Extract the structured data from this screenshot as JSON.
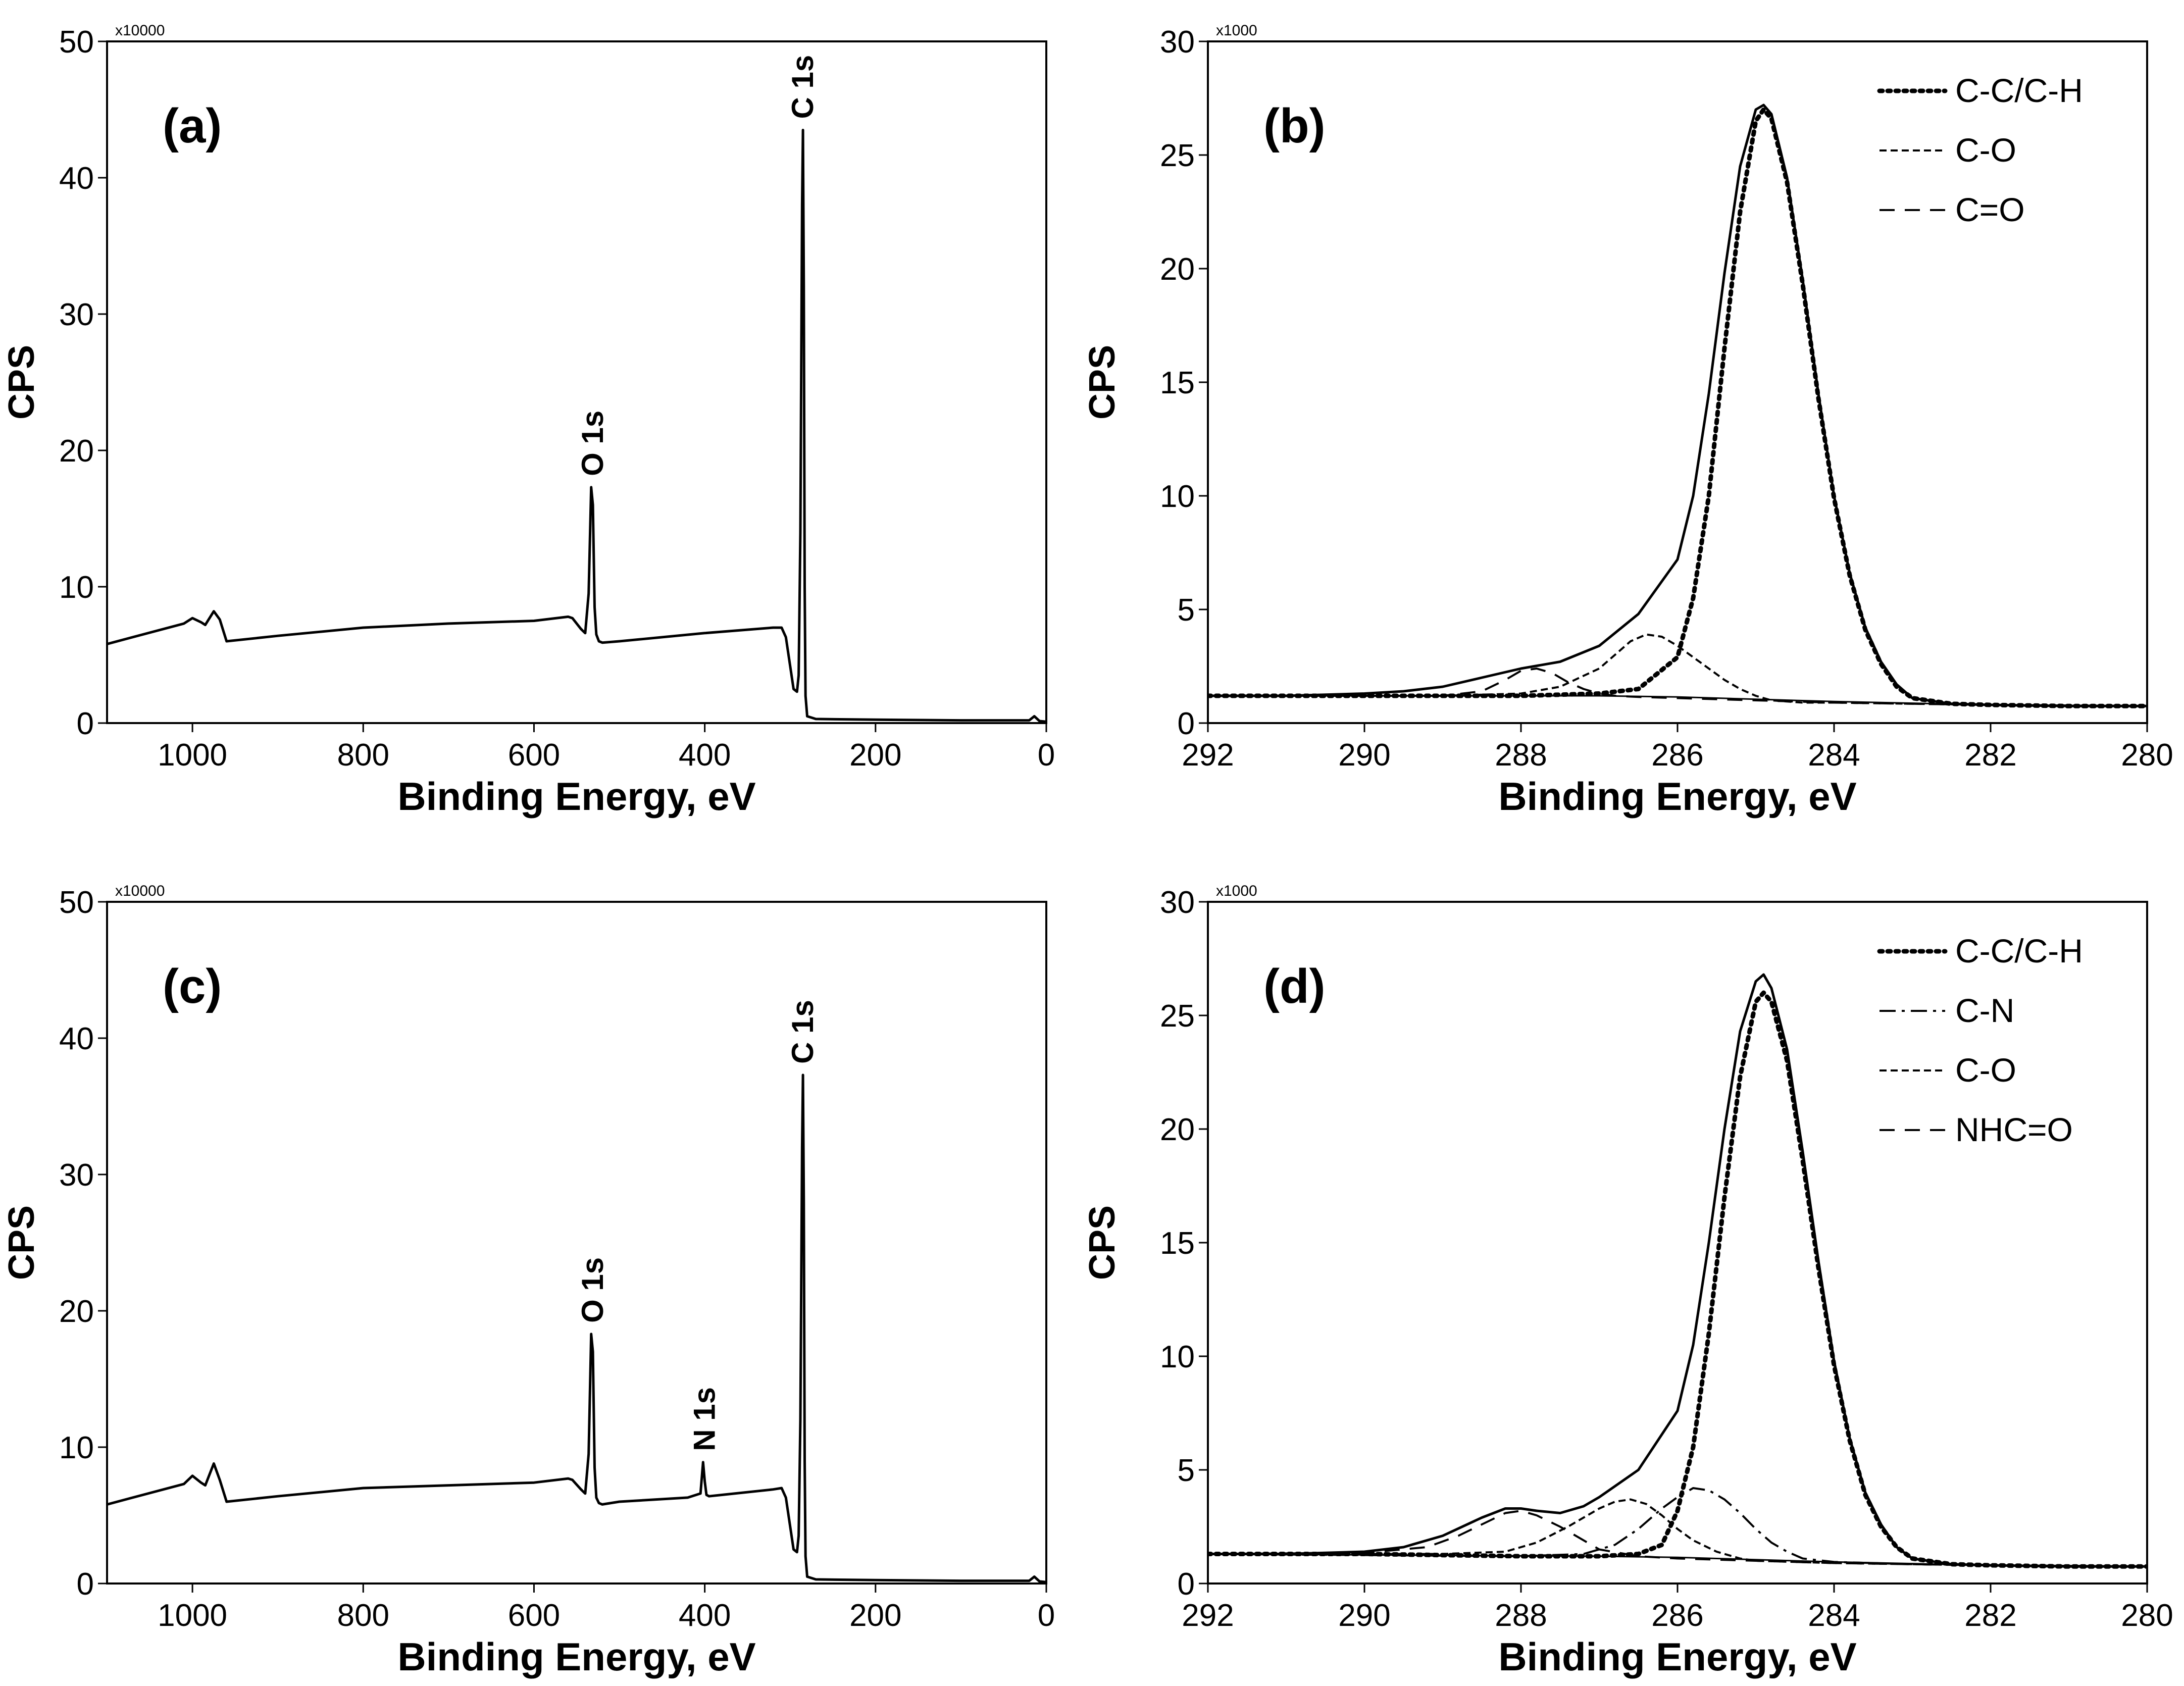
{
  "chart_data": [
    {
      "panel": "(a)",
      "type": "line",
      "title": "",
      "xlabel": "Binding Energy, eV",
      "ylabel": "CPS",
      "y_multiplier": "x10000",
      "xlim": [
        1100,
        0
      ],
      "ylim": [
        0,
        50
      ],
      "xticks": [
        1000,
        800,
        600,
        400,
        200,
        0
      ],
      "yticks": [
        0,
        10,
        20,
        30,
        40,
        50
      ],
      "series": [
        {
          "name": "survey",
          "style": "solid",
          "x": [
            1100,
            1010,
            1000,
            990,
            985,
            975,
            968,
            960,
            900,
            800,
            700,
            600,
            560,
            555,
            545,
            540,
            536,
            533,
            531,
            529,
            527,
            524,
            520,
            500,
            400,
            320,
            310,
            305,
            300,
            296,
            292,
            290,
            288,
            286,
            285,
            284,
            283,
            282,
            280,
            270,
            200,
            100,
            20,
            14,
            8,
            0
          ],
          "y": [
            5.8,
            7.3,
            7.7,
            7.4,
            7.2,
            8.2,
            7.6,
            6.0,
            6.4,
            7.0,
            7.3,
            7.5,
            7.8,
            7.7,
            6.9,
            6.6,
            9.5,
            17.3,
            16.0,
            8.5,
            6.5,
            6.0,
            5.9,
            6.0,
            6.6,
            7.0,
            7.0,
            6.3,
            4.2,
            2.5,
            2.3,
            3.5,
            14.0,
            38.0,
            43.5,
            32.0,
            10.0,
            2.0,
            0.5,
            0.3,
            0.25,
            0.2,
            0.2,
            0.5,
            0.15,
            0.1
          ]
        }
      ],
      "annotations": [
        {
          "text": "O 1s",
          "x": 531,
          "y": 17.3
        },
        {
          "text": "C 1s",
          "x": 285,
          "y": 43.5
        }
      ]
    },
    {
      "panel": "(b)",
      "type": "line",
      "title": "",
      "xlabel": "Binding Energy, eV",
      "ylabel": "CPS",
      "y_multiplier": "x1000",
      "xlim": [
        292,
        280
      ],
      "ylim": [
        0,
        30
      ],
      "xticks": [
        292,
        290,
        288,
        286,
        284,
        282,
        280
      ],
      "yticks": [
        0,
        5,
        10,
        15,
        20,
        25,
        30
      ],
      "legend": [
        {
          "label": "C-C/C-H",
          "style": "dotted"
        },
        {
          "label": "C-O",
          "style": "short-dash"
        },
        {
          "label": "C=O",
          "style": "dash"
        }
      ],
      "series": [
        {
          "name": "envelope",
          "style": "solid",
          "x": [
            292,
            291,
            290,
            289.5,
            289,
            288.5,
            288,
            287.5,
            287,
            286.5,
            286,
            285.8,
            285.6,
            285.4,
            285.2,
            285.0,
            284.9,
            284.8,
            284.6,
            284.4,
            284.2,
            284.0,
            283.8,
            283.6,
            283.4,
            283.2,
            283.0,
            282.5,
            282,
            281,
            280
          ],
          "y": [
            1.2,
            1.2,
            1.3,
            1.4,
            1.6,
            2.0,
            2.4,
            2.7,
            3.4,
            4.8,
            7.2,
            10.0,
            14.5,
            19.8,
            24.5,
            27.0,
            27.2,
            26.8,
            24.0,
            19.5,
            14.5,
            10.0,
            6.6,
            4.2,
            2.7,
            1.7,
            1.1,
            0.85,
            0.8,
            0.75,
            0.75
          ]
        },
        {
          "name": "C-C/C-H",
          "style": "dotted",
          "x": [
            292,
            290,
            288,
            287,
            286.5,
            286,
            285.8,
            285.6,
            285.4,
            285.2,
            285.0,
            284.9,
            284.8,
            284.6,
            284.4,
            284.2,
            284.0,
            283.8,
            283.6,
            283.4,
            283.2,
            283.0,
            282.5,
            282,
            281,
            280
          ],
          "y": [
            1.2,
            1.2,
            1.2,
            1.3,
            1.5,
            2.9,
            5.5,
            10.0,
            16.5,
            22.5,
            26.5,
            27.0,
            26.6,
            23.8,
            19.3,
            14.3,
            9.9,
            6.5,
            4.1,
            2.6,
            1.6,
            1.1,
            0.85,
            0.8,
            0.75,
            0.75
          ]
        },
        {
          "name": "C-O",
          "style": "short-dash",
          "x": [
            292,
            289,
            288,
            287.5,
            287,
            286.8,
            286.6,
            286.4,
            286.2,
            286.0,
            285.8,
            285.6,
            285.4,
            285.2,
            285.0,
            284.8,
            284.6,
            284.4,
            284,
            283,
            282,
            280
          ],
          "y": [
            1.2,
            1.2,
            1.3,
            1.6,
            2.4,
            3.0,
            3.6,
            3.9,
            3.8,
            3.4,
            2.9,
            2.4,
            1.9,
            1.5,
            1.2,
            1.0,
            0.95,
            0.9,
            0.9,
            0.85,
            0.8,
            0.75
          ]
        },
        {
          "name": "C=O",
          "style": "dash",
          "x": [
            292,
            289,
            288.5,
            288.2,
            288.0,
            287.8,
            287.6,
            287.4,
            287.2,
            287.0,
            286.8,
            286.5,
            286,
            285,
            284,
            283,
            282,
            280
          ],
          "y": [
            1.2,
            1.2,
            1.4,
            1.9,
            2.3,
            2.4,
            2.2,
            1.8,
            1.5,
            1.3,
            1.2,
            1.15,
            1.1,
            1.0,
            0.9,
            0.85,
            0.8,
            0.75
          ]
        },
        {
          "name": "background",
          "style": "solid-thin",
          "x": [
            292,
            287,
            286,
            284,
            282,
            280
          ],
          "y": [
            1.2,
            1.2,
            1.15,
            0.95,
            0.8,
            0.75
          ]
        }
      ]
    },
    {
      "panel": "(c)",
      "type": "line",
      "title": "",
      "xlabel": "Binding Energy, eV",
      "ylabel": "CPS",
      "y_multiplier": "x10000",
      "xlim": [
        1100,
        0
      ],
      "ylim": [
        0,
        50
      ],
      "xticks": [
        1000,
        800,
        600,
        400,
        200,
        0
      ],
      "yticks": [
        0,
        10,
        20,
        30,
        40,
        50
      ],
      "series": [
        {
          "name": "survey",
          "style": "solid",
          "x": [
            1100,
            1010,
            1000,
            990,
            985,
            975,
            968,
            960,
            900,
            800,
            700,
            600,
            560,
            555,
            545,
            540,
            536,
            533,
            531,
            529,
            527,
            524,
            520,
            500,
            420,
            405,
            402,
            400,
            398,
            395,
            380,
            320,
            310,
            305,
            300,
            296,
            292,
            290,
            288,
            286,
            285,
            284,
            283,
            282,
            280,
            270,
            200,
            100,
            20,
            14,
            8,
            0
          ],
          "y": [
            5.8,
            7.3,
            7.9,
            7.4,
            7.2,
            8.8,
            7.6,
            6.0,
            6.4,
            7.0,
            7.2,
            7.4,
            7.7,
            7.6,
            6.9,
            6.6,
            9.5,
            18.3,
            17.0,
            8.5,
            6.3,
            5.9,
            5.8,
            6.0,
            6.3,
            6.6,
            8.9,
            7.5,
            6.5,
            6.4,
            6.5,
            6.9,
            7.0,
            6.3,
            4.2,
            2.5,
            2.3,
            3.5,
            12.0,
            32.0,
            37.3,
            28.0,
            9.0,
            2.0,
            0.5,
            0.3,
            0.25,
            0.2,
            0.2,
            0.5,
            0.15,
            0.1
          ]
        }
      ],
      "annotations": [
        {
          "text": "O 1s",
          "x": 531,
          "y": 18.3
        },
        {
          "text": "N 1s",
          "x": 400,
          "y": 8.9
        },
        {
          "text": "C 1s",
          "x": 285,
          "y": 37.3
        }
      ]
    },
    {
      "panel": "(d)",
      "type": "line",
      "title": "",
      "xlabel": "Binding Energy, eV",
      "ylabel": "CPS",
      "y_multiplier": "x1000",
      "xlim": [
        292,
        280
      ],
      "ylim": [
        0,
        30
      ],
      "xticks": [
        292,
        290,
        288,
        286,
        284,
        282,
        280
      ],
      "yticks": [
        0,
        5,
        10,
        15,
        20,
        25,
        30
      ],
      "legend": [
        {
          "label": "C-C/C-H",
          "style": "dotted"
        },
        {
          "label": "C-N",
          "style": "dash-dot"
        },
        {
          "label": "C-O",
          "style": "short-dash"
        },
        {
          "label": "NHC=O",
          "style": "dash"
        }
      ],
      "series": [
        {
          "name": "envelope",
          "style": "solid",
          "x": [
            292,
            291,
            290,
            289.5,
            289,
            288.5,
            288.2,
            288,
            287.8,
            287.5,
            287.2,
            287,
            286.5,
            286,
            285.8,
            285.6,
            285.4,
            285.2,
            285.0,
            284.9,
            284.8,
            284.6,
            284.4,
            284.2,
            284.0,
            283.8,
            283.6,
            283.4,
            283.2,
            283.0,
            282.5,
            282,
            281,
            280
          ],
          "y": [
            1.3,
            1.3,
            1.4,
            1.6,
            2.1,
            2.9,
            3.3,
            3.3,
            3.2,
            3.1,
            3.4,
            3.8,
            5.0,
            7.6,
            10.5,
            15.0,
            20.0,
            24.3,
            26.5,
            26.8,
            26.2,
            23.5,
            19.0,
            14.2,
            9.8,
            6.4,
            4.0,
            2.6,
            1.6,
            1.1,
            0.85,
            0.8,
            0.75,
            0.75
          ]
        },
        {
          "name": "C-C/C-H",
          "style": "dotted",
          "x": [
            292,
            290,
            288,
            287,
            286.5,
            286.2,
            286.0,
            285.8,
            285.6,
            285.4,
            285.2,
            285.0,
            284.9,
            284.8,
            284.6,
            284.4,
            284.2,
            284.0,
            283.8,
            283.6,
            283.4,
            283.2,
            283.0,
            282.5,
            282,
            281,
            280
          ],
          "y": [
            1.3,
            1.3,
            1.2,
            1.2,
            1.3,
            1.7,
            3.2,
            6.0,
            11.0,
            17.0,
            22.3,
            25.6,
            26.0,
            25.6,
            23.0,
            18.6,
            13.9,
            9.6,
            6.3,
            3.9,
            2.5,
            1.6,
            1.1,
            0.85,
            0.8,
            0.75,
            0.75
          ]
        },
        {
          "name": "C-N",
          "style": "dash-dot",
          "x": [
            292,
            288,
            287.2,
            286.8,
            286.5,
            286.2,
            286.0,
            285.8,
            285.6,
            285.4,
            285.2,
            285.0,
            284.8,
            284.6,
            284.4,
            284.0,
            283,
            282,
            280
          ],
          "y": [
            1.3,
            1.2,
            1.3,
            1.7,
            2.4,
            3.3,
            3.8,
            4.2,
            4.1,
            3.7,
            3.1,
            2.4,
            1.8,
            1.4,
            1.1,
            0.95,
            0.85,
            0.8,
            0.75
          ]
        },
        {
          "name": "C-O",
          "style": "short-dash",
          "x": [
            292,
            289,
            288.2,
            287.8,
            287.4,
            287.0,
            286.8,
            286.6,
            286.4,
            286.2,
            286.0,
            285.8,
            285.5,
            285.2,
            285.0,
            284.5,
            284,
            283,
            282,
            280
          ],
          "y": [
            1.3,
            1.3,
            1.4,
            1.8,
            2.5,
            3.3,
            3.6,
            3.7,
            3.5,
            3.0,
            2.4,
            1.9,
            1.4,
            1.1,
            1.0,
            0.95,
            0.9,
            0.85,
            0.8,
            0.75
          ]
        },
        {
          "name": "NHC=O",
          "style": "dash",
          "x": [
            292,
            290,
            289.2,
            288.8,
            288.5,
            288.2,
            288.0,
            287.8,
            287.5,
            287.2,
            287.0,
            286.5,
            286,
            285,
            284,
            283,
            282,
            280
          ],
          "y": [
            1.3,
            1.35,
            1.6,
            2.1,
            2.6,
            3.1,
            3.2,
            3.0,
            2.5,
            1.9,
            1.5,
            1.2,
            1.1,
            1.0,
            0.9,
            0.85,
            0.8,
            0.75
          ]
        },
        {
          "name": "background",
          "style": "solid-thin",
          "x": [
            292,
            287,
            286,
            284,
            282,
            280
          ],
          "y": [
            1.3,
            1.2,
            1.15,
            0.95,
            0.8,
            0.75
          ]
        }
      ]
    }
  ]
}
